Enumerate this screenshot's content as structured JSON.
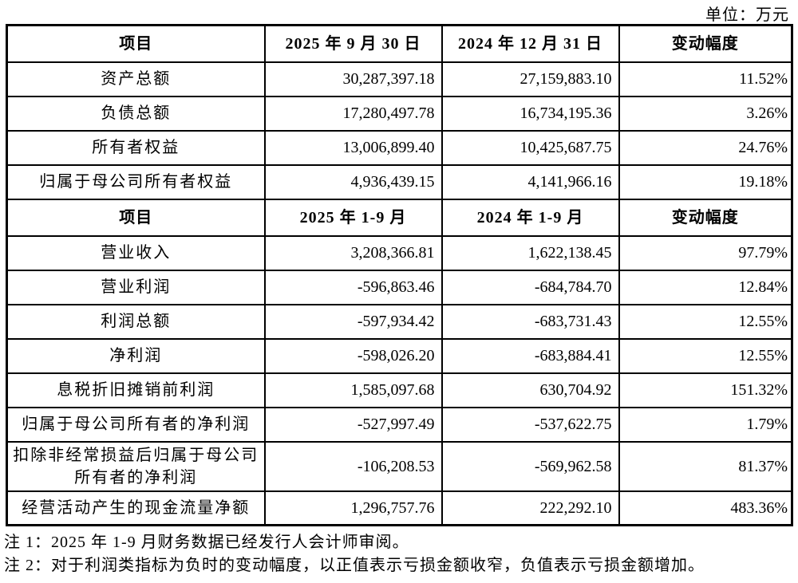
{
  "unit_label": "单位：万元",
  "table": {
    "sections": [
      {
        "header": {
          "item": "项目",
          "col1": "2025 年 9 月 30 日",
          "col2": "2024 年 12 月 31 日",
          "col3": "变动幅度"
        },
        "rows": [
          {
            "item": "资产总额",
            "col1": "30,287,397.18",
            "col2": "27,159,883.10",
            "col3": "11.52%"
          },
          {
            "item": "负债总额",
            "col1": "17,280,497.78",
            "col2": "16,734,195.36",
            "col3": "3.26%"
          },
          {
            "item": "所有者权益",
            "col1": "13,006,899.40",
            "col2": "10,425,687.75",
            "col3": "24.76%"
          },
          {
            "item": "归属于母公司所有者权益",
            "col1": "4,936,439.15",
            "col2": "4,141,966.16",
            "col3": "19.18%"
          }
        ]
      },
      {
        "header": {
          "item": "项目",
          "col1": "2025 年 1-9 月",
          "col2": "2024 年 1-9 月",
          "col3": "变动幅度"
        },
        "rows": [
          {
            "item": "营业收入",
            "col1": "3,208,366.81",
            "col2": "1,622,138.45",
            "col3": "97.79%"
          },
          {
            "item": "营业利润",
            "col1": "-596,863.46",
            "col2": "-684,784.70",
            "col3": "12.84%"
          },
          {
            "item": "利润总额",
            "col1": "-597,934.42",
            "col2": "-683,731.43",
            "col3": "12.55%"
          },
          {
            "item": "净利润",
            "col1": "-598,026.20",
            "col2": "-683,884.41",
            "col3": "12.55%"
          },
          {
            "item": "息税折旧摊销前利润",
            "col1": "1,585,097.68",
            "col2": "630,704.92",
            "col3": "151.32%"
          },
          {
            "item": "归属于母公司所有者的净利润",
            "col1": "-527,997.49",
            "col2": "-537,622.75",
            "col3": "1.79%"
          },
          {
            "item": "扣除非经常损益后归属于母公司所有者的净利润",
            "col1": "-106,208.53",
            "col2": "-569,962.58",
            "col3": "81.37%"
          },
          {
            "item": "经营活动产生的现金流量净额",
            "col1": "1,296,757.76",
            "col2": "222,292.10",
            "col3": "483.36%"
          }
        ]
      }
    ]
  },
  "notes": [
    "注 1：2025 年 1-9 月财务数据已经发行人会计师审阅。",
    "注 2：对于利润类指标为负时的变动幅度，以正值表示亏损金额收窄，负值表示亏损金额增加。"
  ],
  "colors": {
    "text": "#000000",
    "border": "#000000",
    "background": "#ffffff"
  }
}
